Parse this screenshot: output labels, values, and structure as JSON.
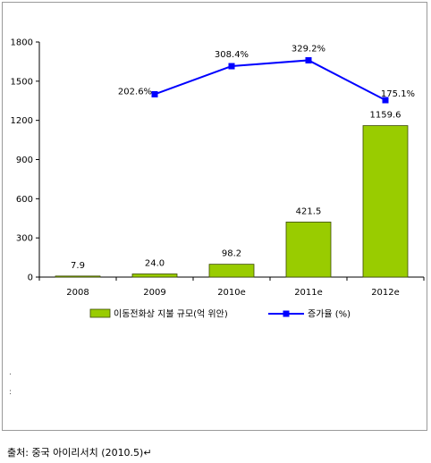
{
  "chart_data": {
    "type": "bar",
    "categories": [
      "2008",
      "2009",
      "2010e",
      "2011e",
      "2012e"
    ],
    "ylim": [
      0,
      1800
    ],
    "yticks": [
      0,
      300,
      600,
      900,
      1200,
      1500,
      1800
    ],
    "grid": false,
    "legend_position": "bottom",
    "series": [
      {
        "name": "이동전화상 지불 규모(억 위안)",
        "type": "bar",
        "color": "#99cc00",
        "values": [
          7.9,
          24.0,
          98.2,
          421.5,
          1159.6
        ],
        "labels": [
          "7.9",
          "24.0",
          "98.2",
          "421.5",
          "1159.6"
        ]
      },
      {
        "name": "증가율 (%)",
        "type": "line",
        "color": "#0000ff",
        "values": [
          null,
          202.6,
          308.4,
          329.2,
          175.1
        ],
        "labels": [
          "",
          "202.6%",
          "308.4%",
          "329.2%",
          "175.1%"
        ],
        "plot_positions": [
          null,
          1400,
          1615,
          1660,
          1355
        ]
      }
    ]
  },
  "source": "출처: 중국 아이리서치 (2010.5)↵"
}
